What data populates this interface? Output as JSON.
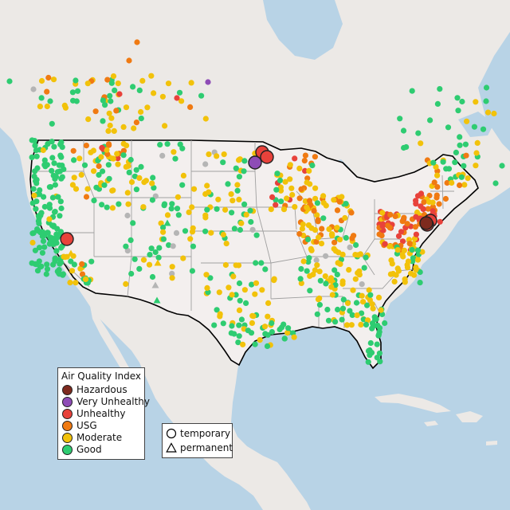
{
  "legend": {
    "title": "Air Quality Index",
    "categories": [
      {
        "label": "Hazardous",
        "color": "#7e2a1e"
      },
      {
        "label": "Very Unhealthy",
        "color": "#8e4cb6"
      },
      {
        "label": "Unhealthy",
        "color": "#e8423b"
      },
      {
        "label": "USG",
        "color": "#f07a12"
      },
      {
        "label": "Moderate",
        "color": "#f2c20a"
      },
      {
        "label": "Good",
        "color": "#2ecc71"
      }
    ]
  },
  "monitor_types": {
    "temporary": "temporary",
    "permanent": "permanent"
  },
  "colors": {
    "ocean": "#b8d3e6",
    "land": "#ece9e6",
    "us_land": "#f1ecec",
    "border": "#000000",
    "state_line": "#9a9a9a",
    "no_data": "#b5b5b5"
  }
}
